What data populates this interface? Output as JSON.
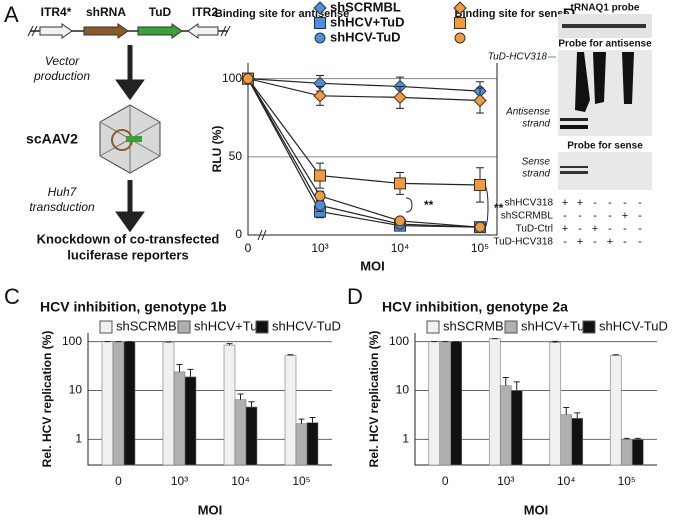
{
  "panel_labels": [
    "A",
    "B",
    "C",
    "D"
  ],
  "diagram": {
    "elements": [
      "ITR4*",
      "shRNA",
      "TuD",
      "ITR2"
    ],
    "step1": [
      "Vector",
      "production"
    ],
    "vector": "scAAV2",
    "step2": [
      "Huh7",
      "transduction"
    ],
    "result": [
      "Knockdown of co-transfected",
      "luciferase reporters"
    ]
  },
  "blot": {
    "probe_top": "tRNAQ1 probe",
    "probe_antisense": "Probe for antisense",
    "band_label": "TuD-HCV318",
    "antisense_label": [
      "Antisense",
      "strand"
    ],
    "probe_sense": "Probe for sense",
    "sense_label": [
      "Sense",
      "strand"
    ],
    "rows": [
      {
        "label": "shHCV318",
        "signs": [
          "+",
          "+",
          "-",
          "-",
          "-",
          "-"
        ]
      },
      {
        "label": "shSCRMBL",
        "signs": [
          "-",
          "-",
          "-",
          "-",
          "+",
          "-"
        ]
      },
      {
        "label": "TuD-Ctrl",
        "signs": [
          "+",
          "-",
          "+",
          "-",
          "-",
          "-"
        ]
      },
      {
        "label": "TuD-HCV318",
        "signs": [
          "-",
          "+",
          "-",
          "+",
          "-",
          "-"
        ]
      }
    ]
  },
  "chart_data": [
    {
      "type": "line",
      "categories": [
        "0",
        "10³",
        "10⁴",
        "10⁵"
      ],
      "x_label": "MOI",
      "y_label": "RLU (%)",
      "ylim": [
        0,
        110
      ],
      "yticks": [
        0,
        50,
        100
      ],
      "grid": true,
      "legend_groups": [
        "Binding site for antisense",
        "Binding site for sense"
      ],
      "annotations": [
        "**",
        "**"
      ],
      "series": [
        {
          "name": "shSCRMBL",
          "marker": "diamond",
          "color": "#4a8fe0",
          "values": [
            100,
            97,
            95,
            92
          ],
          "errors": [
            0,
            5,
            6,
            6
          ]
        },
        {
          "name": "shHCV+TuD",
          "marker": "square",
          "color": "#4a8fe0",
          "values": [
            100,
            15,
            6,
            5
          ],
          "errors": [
            0,
            4,
            1,
            1
          ]
        },
        {
          "name": "shHCV-TuD",
          "marker": "circle",
          "color": "#4a8fe0",
          "values": [
            100,
            19,
            7,
            5
          ],
          "errors": [
            0,
            4,
            1,
            1
          ]
        },
        {
          "marker": "diamond",
          "color": "#f39a3c",
          "values": [
            100,
            89,
            88,
            86
          ],
          "errors": [
            0,
            6,
            7,
            8
          ]
        },
        {
          "marker": "square",
          "color": "#f39a3c",
          "values": [
            100,
            38,
            33,
            32
          ],
          "errors": [
            0,
            8,
            7,
            11
          ]
        },
        {
          "marker": "circle",
          "color": "#f39a3c",
          "values": [
            100,
            25,
            9,
            5
          ],
          "errors": [
            0,
            3,
            1,
            1
          ]
        }
      ]
    },
    {
      "type": "bar",
      "title": "HCV inhibition, genotype 1b",
      "categories": [
        "0",
        "10³",
        "10⁴",
        "10⁵"
      ],
      "x_label": "MOI",
      "y_label": "Rel. HCV replication (%)",
      "log_scale": true,
      "ylim": [
        0.3,
        150
      ],
      "yticks": [
        1,
        10,
        100
      ],
      "grid": true,
      "series": [
        {
          "name": "shSCRMBL",
          "color": "#f0f0f0",
          "values": [
            100,
            98,
            85,
            52
          ],
          "errors": [
            0,
            0,
            6,
            2
          ]
        },
        {
          "name": "shHCV+TuD",
          "color": "#b0b0b0",
          "values": [
            100,
            24,
            6.5,
            2.1
          ],
          "errors": [
            0,
            10,
            2,
            0.5
          ]
        },
        {
          "name": "shHCV-TuD",
          "color": "#111111",
          "values": [
            100,
            19,
            4.6,
            2.2
          ],
          "errors": [
            0,
            8,
            1.3,
            0.6
          ]
        }
      ]
    },
    {
      "type": "bar",
      "title": "HCV inhibition, genotype 2a",
      "categories": [
        "0",
        "10³",
        "10⁴",
        "10⁵"
      ],
      "x_label": "MOI",
      "y_label": "Rel. HCV replication (%)",
      "log_scale": true,
      "ylim": [
        0.3,
        150
      ],
      "yticks": [
        1,
        10,
        100
      ],
      "grid": true,
      "series": [
        {
          "name": "shSCRMBL",
          "color": "#f0f0f0",
          "values": [
            100,
            115,
            95,
            52
          ],
          "errors": [
            0,
            0,
            6,
            2
          ]
        },
        {
          "name": "shHCV+TuD",
          "color": "#b0b0b0",
          "values": [
            100,
            12.5,
            3.2,
            1.0
          ],
          "errors": [
            0,
            6,
            1.3,
            0.05
          ]
        },
        {
          "name": "shHCV-TuD",
          "color": "#111111",
          "values": [
            100,
            10,
            2.7,
            1.0
          ],
          "errors": [
            0,
            5,
            0.8,
            0.05
          ]
        }
      ]
    }
  ]
}
